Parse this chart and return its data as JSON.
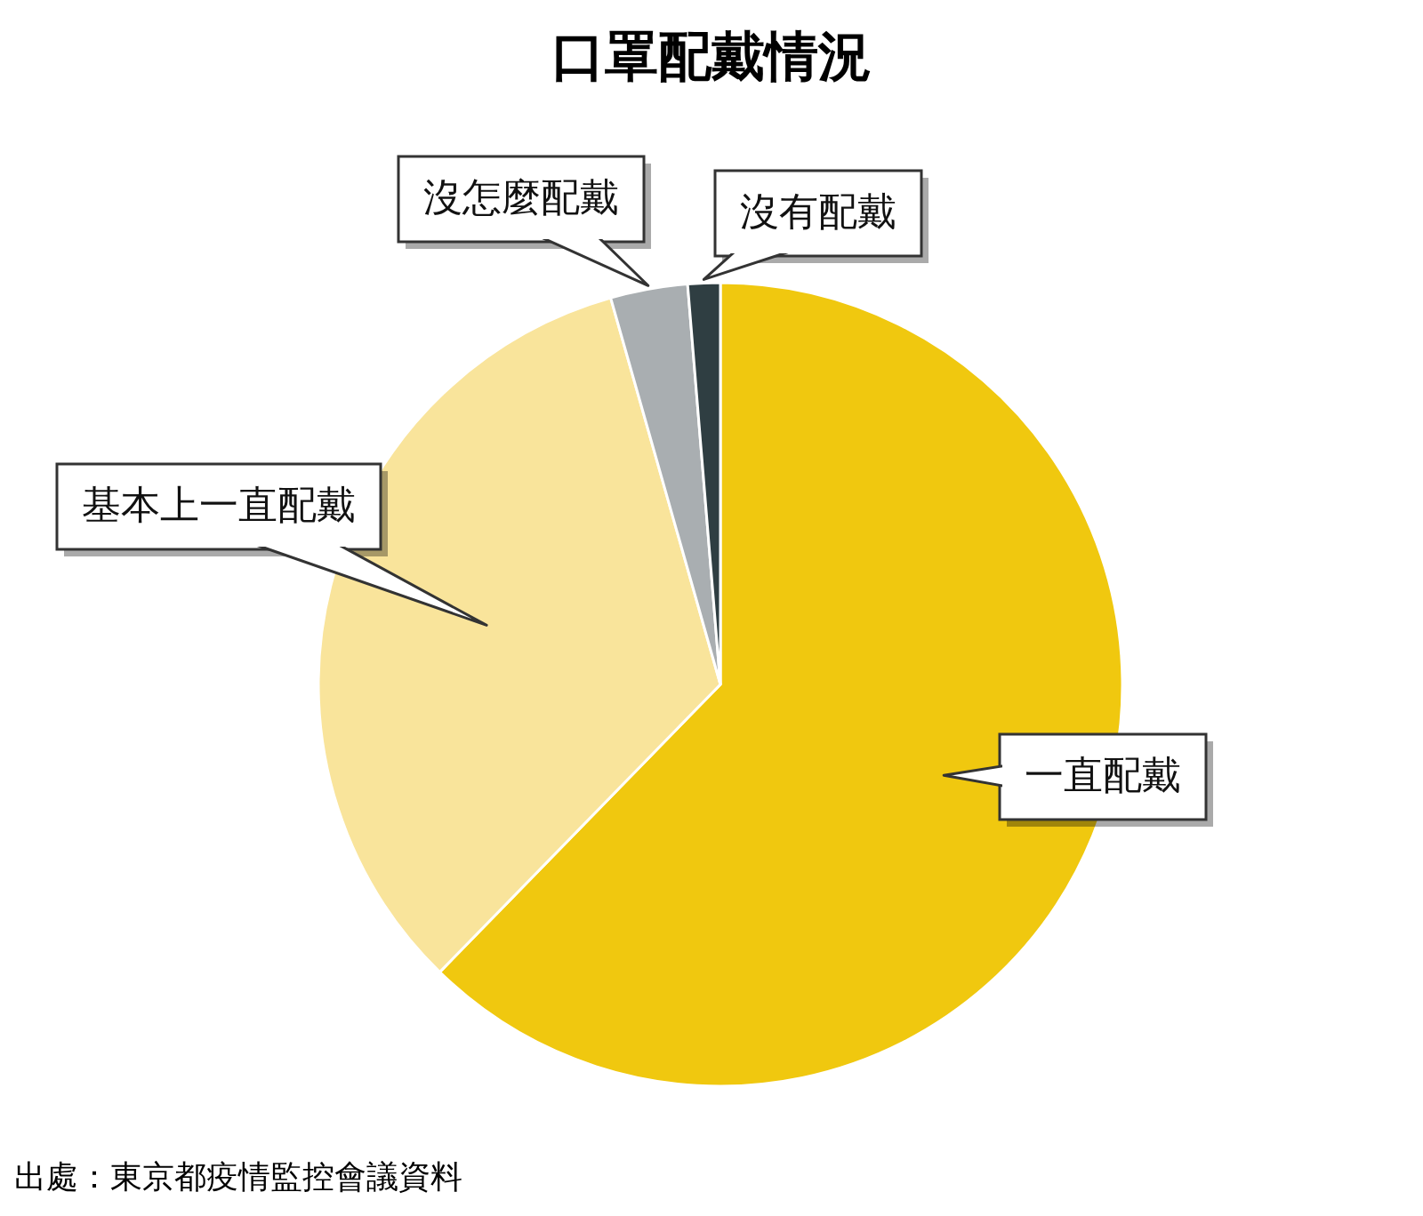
{
  "chart_data": {
    "type": "pie",
    "title": "口罩配戴情況",
    "categories": [
      "一直配戴",
      "基本上一直配戴",
      "沒怎麼配戴",
      "沒有配戴"
    ],
    "values": [
      62.3,
      33.3,
      3.1,
      1.3
    ],
    "colors": [
      "#f0c80f",
      "#f9e49b",
      "#a9aeb1",
      "#2f3e42"
    ],
    "legend": false,
    "annotations": [
      "出處：東京都疫情監控會議資料"
    ]
  }
}
